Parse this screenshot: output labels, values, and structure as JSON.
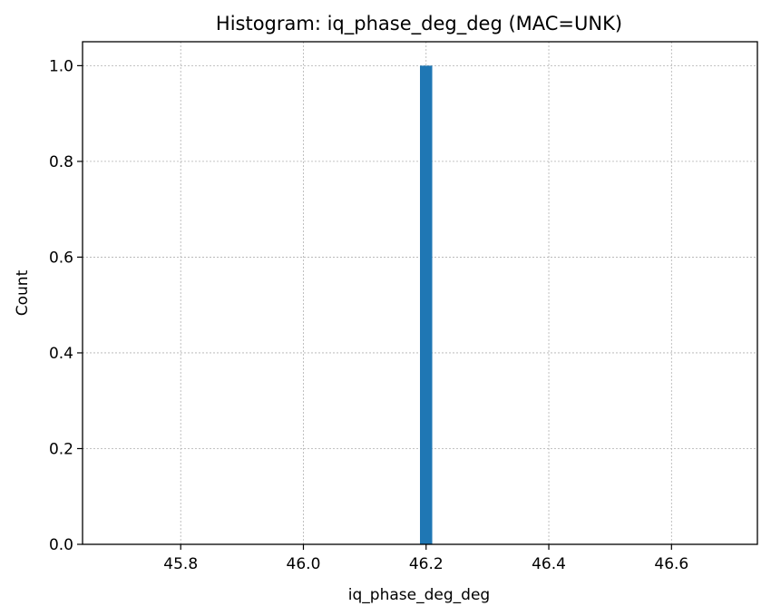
{
  "chart_data": {
    "type": "bar",
    "title": "Histogram: iq_phase_deg_deg (MAC=UNK)",
    "xlabel": "iq_phase_deg_deg",
    "ylabel": "Count",
    "xlim": [
      45.64,
      46.74
    ],
    "ylim": [
      0,
      1.05
    ],
    "xticks": [
      45.8,
      46.0,
      46.2,
      46.4,
      46.6
    ],
    "xtick_labels": [
      "45.8",
      "46.0",
      "46.2",
      "46.4",
      "46.6"
    ],
    "yticks": [
      0.0,
      0.2,
      0.4,
      0.6,
      0.8,
      1.0
    ],
    "ytick_labels": [
      "0.0",
      "0.2",
      "0.4",
      "0.6",
      "0.8",
      "1.0"
    ],
    "grid": true,
    "bars": [
      {
        "x_start": 46.19,
        "x_end": 46.21,
        "value": 1.0
      }
    ],
    "color": "#1f77b4"
  }
}
